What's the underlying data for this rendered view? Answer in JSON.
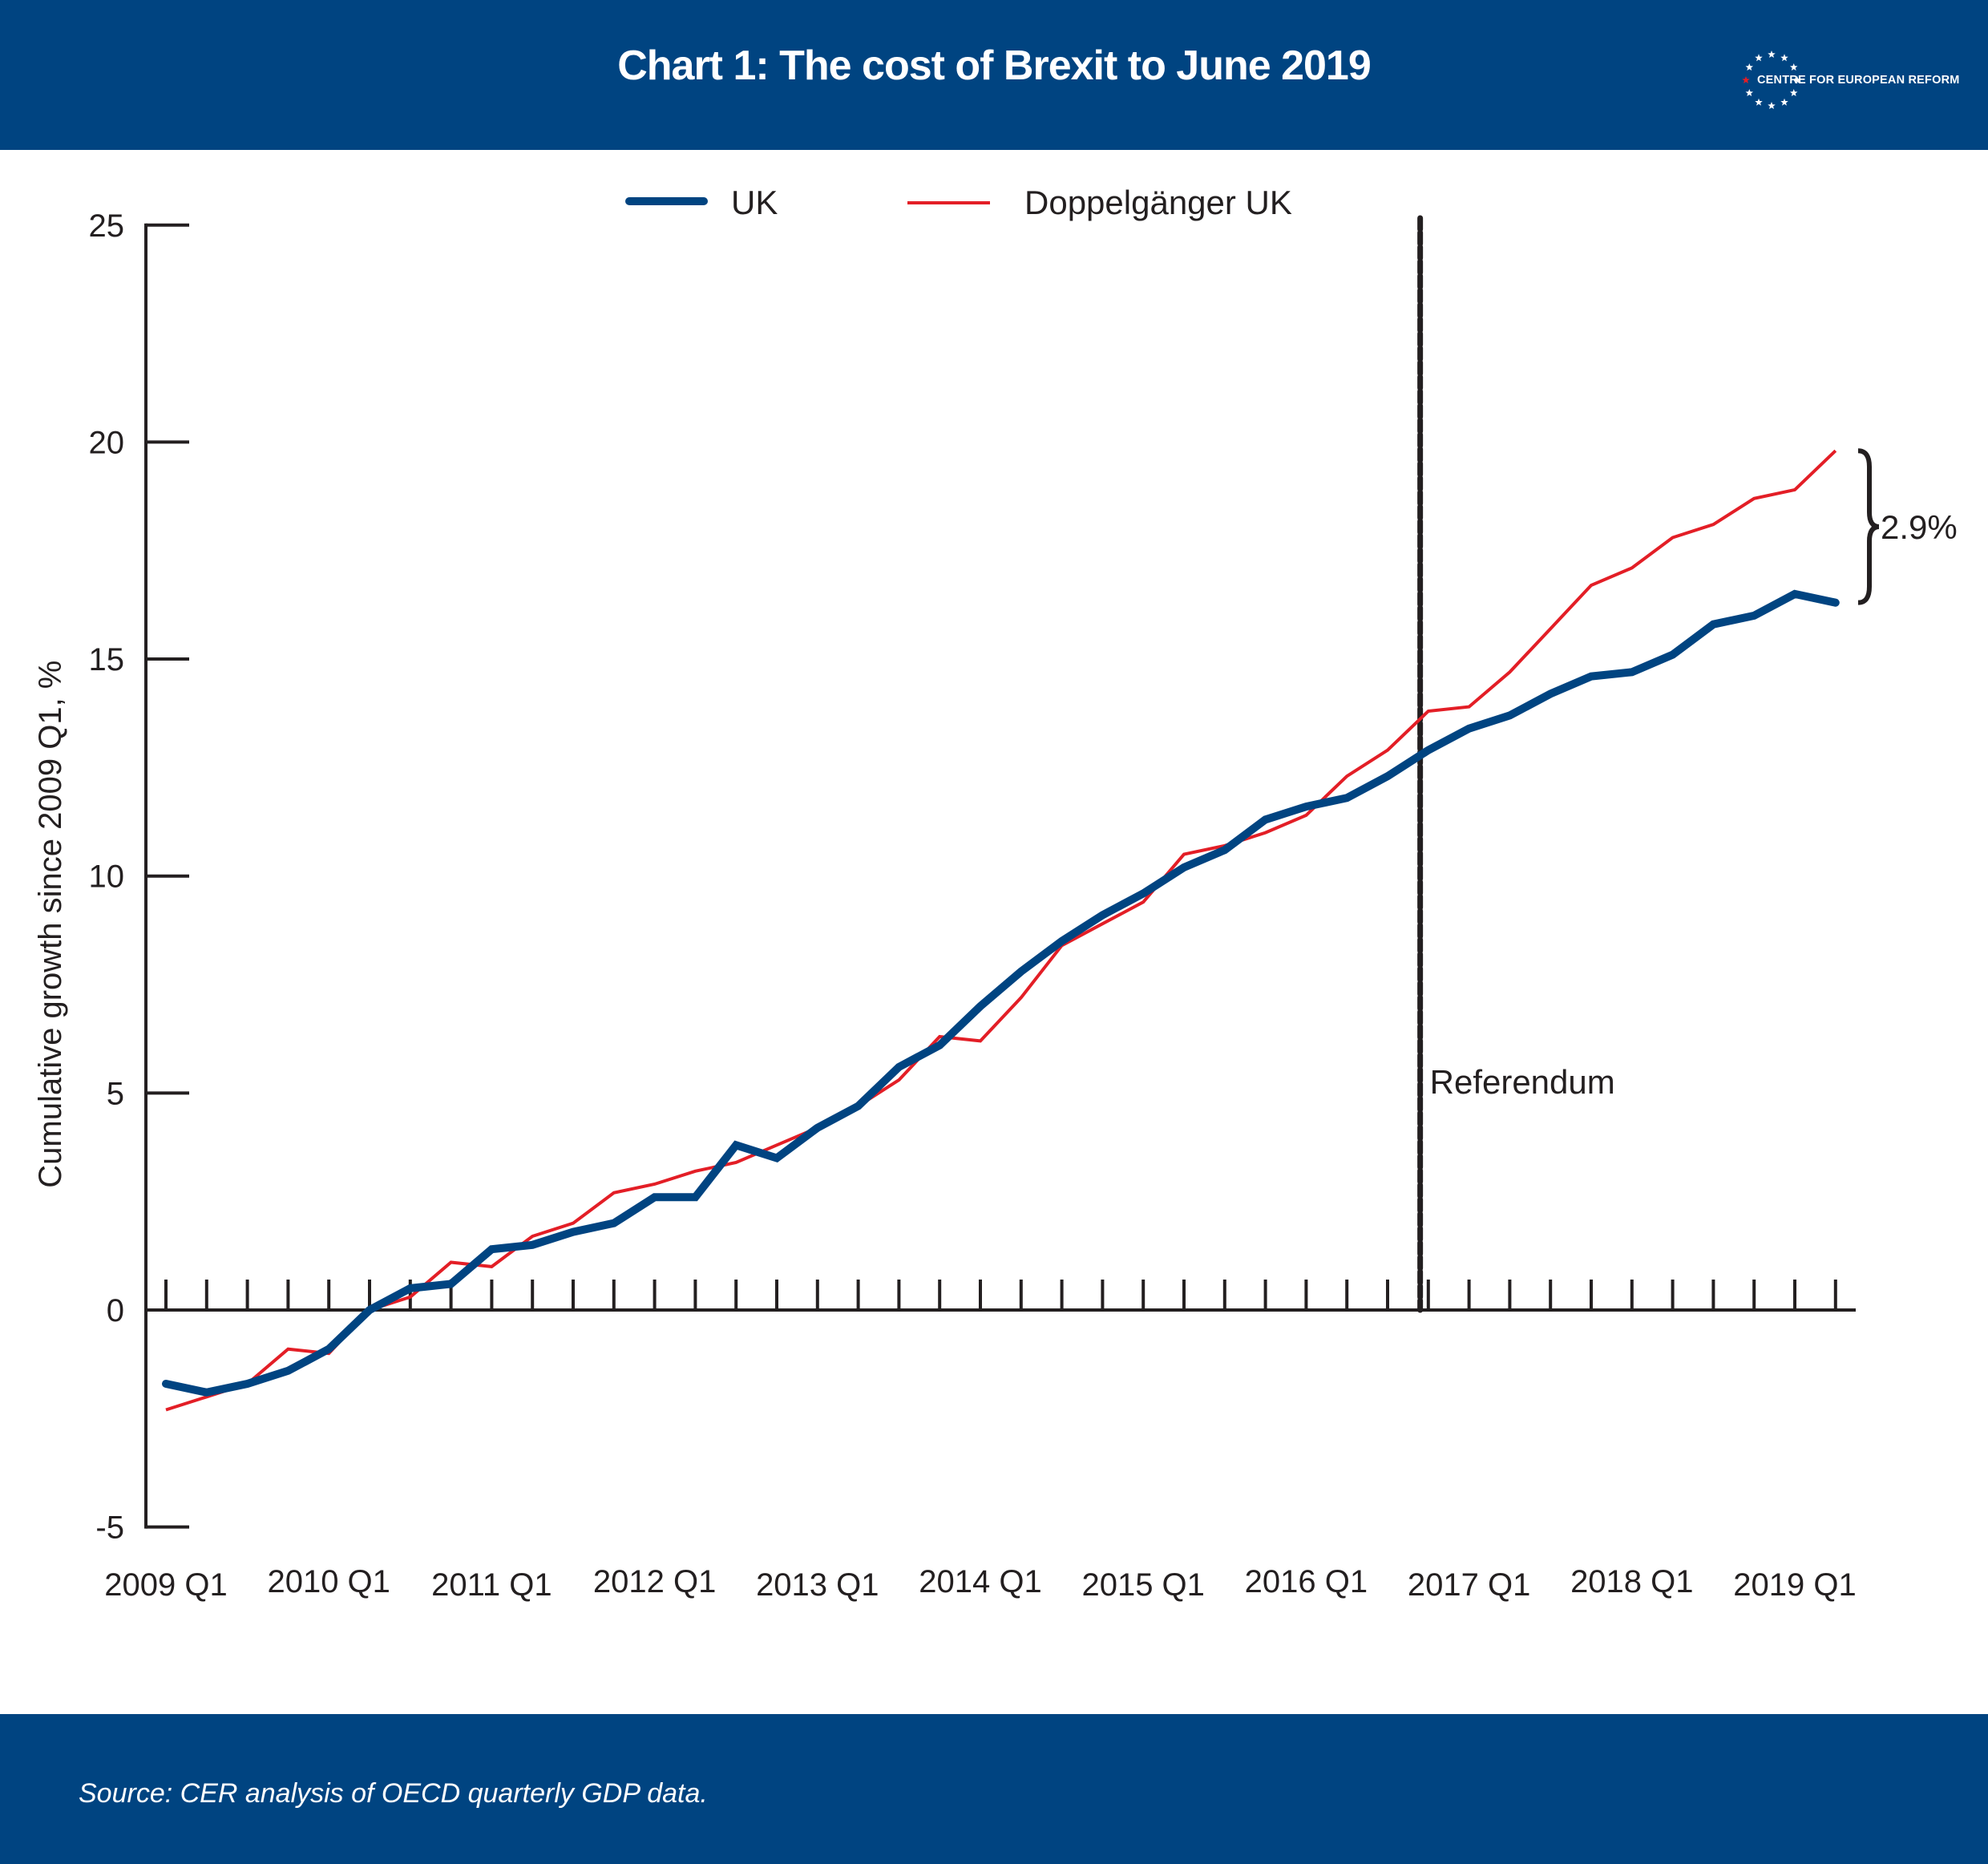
{
  "header": {
    "title": "Chart 1: The cost of Brexit to June 2019",
    "logo_text": "CENTRE FOR EUROPEAN REFORM",
    "logo_icon": "eu-star-circle-icon"
  },
  "footer": {
    "source": "Source:  CER analysis of OECD quarterly GDP data."
  },
  "colors": {
    "brand_blue": "#004481",
    "uk_line": "#004481",
    "doppelganger_line": "#e31e26",
    "axis": "#231f20",
    "logo_accent_star": "#e31e26"
  },
  "chart_data": {
    "type": "line",
    "title": "Chart 1: The cost of Brexit to June 2019",
    "xlabel": "",
    "ylabel": "Cumulative growth since 2009 Q1, %",
    "ylim": [
      -5,
      25
    ],
    "yticks": [
      -5,
      0,
      5,
      10,
      15,
      20,
      25
    ],
    "ytick_labels": [
      "-5",
      "0",
      "5",
      "10",
      "15",
      "20",
      "25"
    ],
    "x": [
      "2009 Q1",
      "2009 Q2",
      "2009 Q3",
      "2009 Q4",
      "2010 Q1",
      "2010 Q2",
      "2010 Q3",
      "2010 Q4",
      "2011 Q1",
      "2011 Q2",
      "2011 Q3",
      "2011 Q4",
      "2012 Q1",
      "2012 Q2",
      "2012 Q3",
      "2012 Q4",
      "2013 Q1",
      "2013 Q2",
      "2013 Q3",
      "2013 Q4",
      "2014 Q1",
      "2014 Q2",
      "2014 Q3",
      "2014 Q4",
      "2015 Q1",
      "2015 Q2",
      "2015 Q3",
      "2015 Q4",
      "2016 Q1",
      "2016 Q2",
      "2016 Q3",
      "2016 Q4",
      "2017 Q1",
      "2017 Q2",
      "2017 Q3",
      "2017 Q4",
      "2018 Q1",
      "2018 Q2",
      "2018 Q3",
      "2018 Q4",
      "2019 Q1",
      "2019 Q2"
    ],
    "xtick_labels": [
      "2009 Q1",
      "2010 Q1",
      "2011 Q1",
      "2012 Q1",
      "2013 Q1",
      "2014 Q1",
      "2015 Q1",
      "2016 Q1",
      "2017 Q1",
      "2018 Q1",
      "2019 Q1"
    ],
    "xtick_label_indices": [
      0,
      4,
      8,
      12,
      16,
      20,
      24,
      28,
      32,
      36,
      40
    ],
    "grid": false,
    "legend": "top-center",
    "series": [
      {
        "name": "UK",
        "color": "#004481",
        "values": [
          -1.7,
          -1.9,
          -1.7,
          -1.4,
          -0.9,
          0.0,
          0.5,
          0.6,
          1.4,
          1.5,
          1.8,
          2.0,
          2.6,
          2.6,
          3.8,
          3.5,
          4.2,
          4.7,
          5.6,
          6.1,
          7.0,
          7.8,
          8.5,
          9.1,
          9.6,
          10.2,
          10.6,
          11.3,
          11.6,
          11.8,
          12.3,
          12.9,
          13.4,
          13.7,
          14.2,
          14.6,
          14.7,
          15.1,
          15.8,
          16.0,
          16.5,
          16.3
        ]
      },
      {
        "name": "Doppelgänger UK",
        "color": "#e31e26",
        "values": [
          -2.3,
          -2.0,
          -1.7,
          -0.9,
          -1.0,
          0.0,
          0.3,
          1.1,
          1.0,
          1.7,
          2.0,
          2.7,
          2.9,
          3.2,
          3.4,
          3.8,
          4.2,
          4.7,
          5.3,
          6.3,
          6.2,
          7.2,
          8.4,
          8.9,
          9.4,
          10.5,
          10.7,
          11.0,
          11.4,
          12.3,
          12.9,
          13.8,
          13.9,
          14.7,
          15.7,
          16.7,
          17.1,
          17.8,
          18.1,
          18.7,
          18.9,
          19.8
        ]
      }
    ],
    "annotations": [
      {
        "type": "vline",
        "label": "Referendum",
        "x_position_quarters": 30.8,
        "style": "dashed"
      },
      {
        "type": "brace",
        "label": "2.9%",
        "from": 16.3,
        "to": 19.8
      }
    ]
  }
}
